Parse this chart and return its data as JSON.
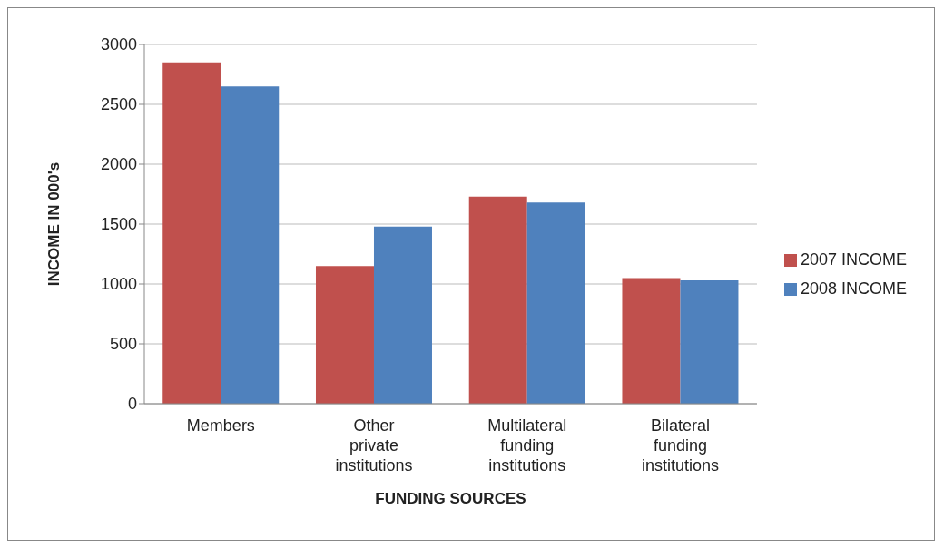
{
  "chart_data": {
    "type": "bar",
    "xlabel": "FUNDING SOURCES",
    "ylabel": "INCOME IN 000's",
    "categories": [
      "Members",
      "Other private institutions",
      "Multilateral funding institutions",
      "Bilateral funding institutions"
    ],
    "series": [
      {
        "name": "2007 INCOME",
        "color": "#c0504d",
        "values": [
          2850,
          1150,
          1730,
          1050
        ]
      },
      {
        "name": "2008 INCOME",
        "color": "#4f81bd",
        "values": [
          2650,
          1480,
          1680,
          1030
        ]
      }
    ],
    "ylim": [
      0,
      3000
    ],
    "yticks": [
      0,
      500,
      1000,
      1500,
      2000,
      2500,
      3000
    ],
    "grid": "y",
    "legend": "right"
  }
}
